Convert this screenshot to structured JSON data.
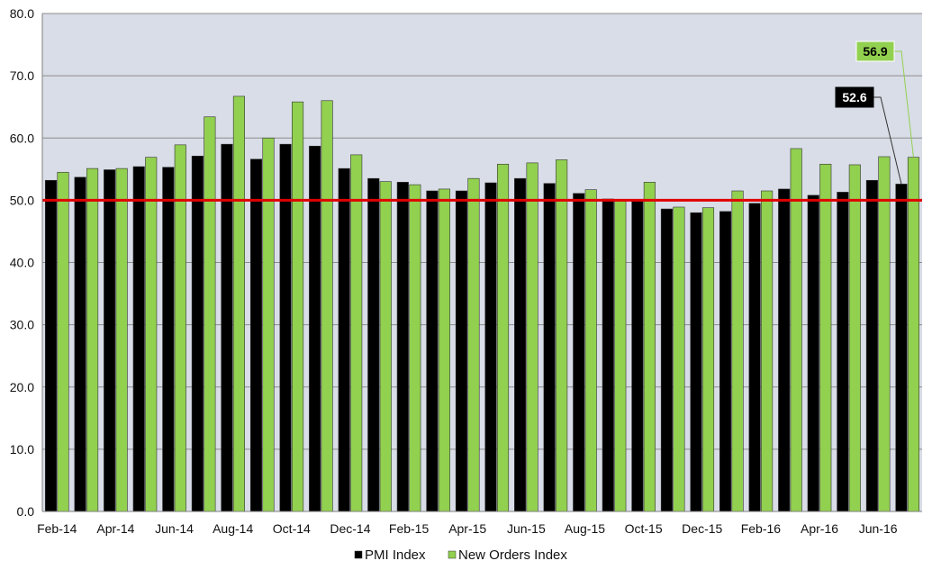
{
  "chart_data": {
    "type": "bar",
    "title": "",
    "xlabel": "",
    "ylabel": "",
    "ylim": [
      0,
      80
    ],
    "yticks": [
      "0.0",
      "10.0",
      "20.0",
      "30.0",
      "40.0",
      "50.0",
      "60.0",
      "70.0",
      "80.0"
    ],
    "grid": "horizontal",
    "legend_position": "bottom-center",
    "categories": [
      "Feb-14",
      "Mar-14",
      "Apr-14",
      "May-14",
      "Jun-14",
      "Jul-14",
      "Aug-14",
      "Sep-14",
      "Oct-14",
      "Nov-14",
      "Dec-14",
      "Jan-15",
      "Feb-15",
      "Mar-15",
      "Apr-15",
      "May-15",
      "Jun-15",
      "Jul-15",
      "Aug-15",
      "Sep-15",
      "Oct-15",
      "Nov-15",
      "Dec-15",
      "Jan-16",
      "Feb-16",
      "Mar-16",
      "Apr-16",
      "May-16",
      "Jun-16",
      "Jul-16"
    ],
    "x_tick_labels": [
      "Feb-14",
      "Apr-14",
      "Jun-14",
      "Aug-14",
      "Oct-14",
      "Dec-14",
      "Feb-15",
      "Apr-15",
      "Jun-15",
      "Aug-15",
      "Oct-15",
      "Dec-15",
      "Feb-16",
      "Apr-16",
      "Jun-16"
    ],
    "series": [
      {
        "name": "PMI Index",
        "color": "#000000",
        "values": [
          53.2,
          53.7,
          54.9,
          55.4,
          55.3,
          57.1,
          59.0,
          56.6,
          59.0,
          58.7,
          55.1,
          53.5,
          52.9,
          51.5,
          51.5,
          52.8,
          53.5,
          52.7,
          51.1,
          50.2,
          50.1,
          48.6,
          48.0,
          48.2,
          49.5,
          51.8,
          50.8,
          51.3,
          53.2,
          52.6
        ]
      },
      {
        "name": "New Orders Index",
        "color": "#92d050",
        "values": [
          54.5,
          55.1,
          55.1,
          56.9,
          58.9,
          63.4,
          66.7,
          60.0,
          65.8,
          66.0,
          57.3,
          53.0,
          52.5,
          51.8,
          53.5,
          55.8,
          56.0,
          56.5,
          51.7,
          50.1,
          52.9,
          48.9,
          48.8,
          51.5,
          51.5,
          58.3,
          55.8,
          55.7,
          57.0,
          56.9
        ]
      }
    ],
    "reference_line": {
      "value": 50.0,
      "color": "#e00000"
    },
    "callouts": [
      {
        "series": "PMI Index",
        "category": "Jul-16",
        "text": "52.6"
      },
      {
        "series": "New Orders Index",
        "category": "Jul-16",
        "text": "56.9"
      }
    ],
    "colors": {
      "plot_bg": "#d9dde7",
      "grid": "#8c8c8c",
      "bar_outline": "#333333"
    }
  }
}
